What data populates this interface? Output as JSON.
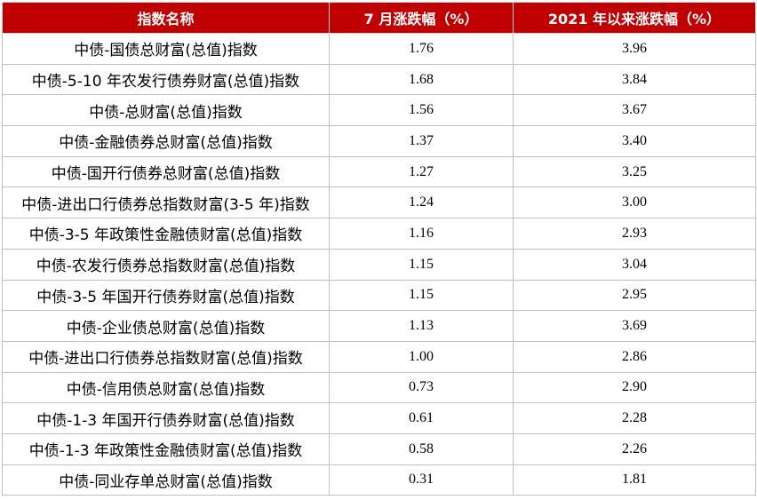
{
  "chart_data": {
    "type": "table",
    "columns": [
      "指数名称",
      "7 月涨跌幅（%）",
      "2021 年以来涨跌幅（%）"
    ],
    "rows": [
      {
        "name": "中债-国债总财富(总值)指数",
        "july": "1.76",
        "ytd": "3.96"
      },
      {
        "name": "中债-5-10 年农发行债券财富(总值)指数",
        "july": "1.68",
        "ytd": "3.84"
      },
      {
        "name": "中债-总财富(总值)指数",
        "july": "1.56",
        "ytd": "3.67"
      },
      {
        "name": "中债-金融债券总财富(总值)指数",
        "july": "1.37",
        "ytd": "3.40"
      },
      {
        "name": "中债-国开行债券总财富(总值)指数",
        "july": "1.27",
        "ytd": "3.25"
      },
      {
        "name": "中债-进出口行债券总指数财富(3-5 年)指数",
        "july": "1.24",
        "ytd": "3.00"
      },
      {
        "name": "中债-3-5 年政策性金融债财富(总值)指数",
        "july": "1.16",
        "ytd": "2.93"
      },
      {
        "name": "中债-农发行债券总指数财富(总值)指数",
        "july": "1.15",
        "ytd": "3.04"
      },
      {
        "name": "中债-3-5 年国开行债券财富(总值)指数",
        "july": "1.15",
        "ytd": "2.95"
      },
      {
        "name": "中债-企业债总财富(总值)指数",
        "july": "1.13",
        "ytd": "3.69"
      },
      {
        "name": "中债-进出口行债券总指数财富(总值)指数",
        "july": "1.00",
        "ytd": "2.86"
      },
      {
        "name": "中债-信用债总财富(总值)指数",
        "july": "0.73",
        "ytd": "2.90"
      },
      {
        "name": "中债-1-3 年国开行债券财富(总值)指数",
        "july": "0.61",
        "ytd": "2.28"
      },
      {
        "name": "中债-1-3 年政策性金融债财富(总值)指数",
        "july": "0.58",
        "ytd": "2.26"
      },
      {
        "name": "中债-同业存单总财富(总值)指数",
        "july": "0.31",
        "ytd": "1.81"
      }
    ],
    "colors": {
      "header_bg": "#c00000",
      "header_text": "#ffffff"
    }
  }
}
